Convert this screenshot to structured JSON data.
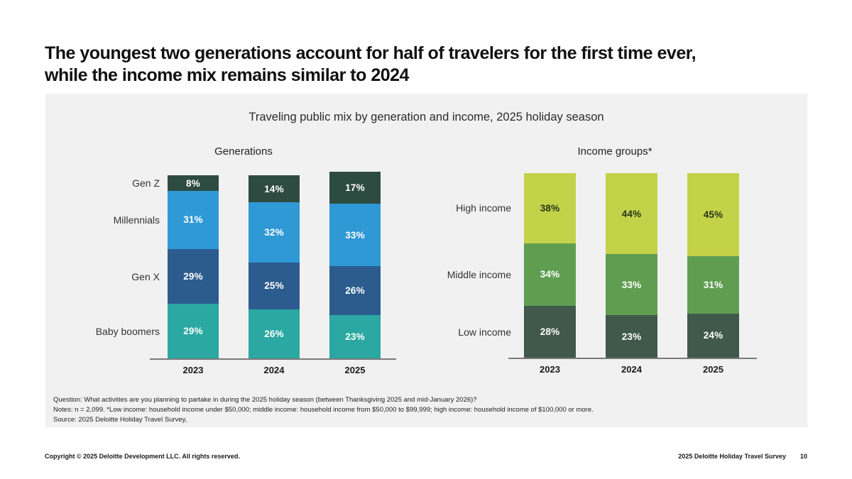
{
  "slide": {
    "title_line1": "The youngest two generations account for half of travelers for the first time ever,",
    "title_line2": "while the income mix remains similar to 2024",
    "footer_left": "Copyright © 2025 Deloitte Development LLC. All rights reserved.",
    "footer_right": "2025 Deloitte Holiday Travel Survey",
    "page_number": "10"
  },
  "chart_data": {
    "type": "bar",
    "stacked": true,
    "title": "Traveling public mix by generation and income, 2025 holiday season",
    "value_suffix": "%",
    "legend_position": "left-of-bars",
    "grid": false,
    "panel_background": "#f1f1f2",
    "axis_color": "#7a7a7a",
    "charts": [
      {
        "subtitle": "Generations",
        "categories": [
          "2023",
          "2024",
          "2025"
        ],
        "series": [
          {
            "name": "Gen Z",
            "color": "#2E4B41",
            "label_color": "#ffffff",
            "values": [
              8,
              14,
              17
            ]
          },
          {
            "name": "Millennials",
            "color": "#2F99D6",
            "label_color": "#ffffff",
            "values": [
              31,
              32,
              33
            ]
          },
          {
            "name": "Gen X",
            "color": "#2C5C8E",
            "label_color": "#ffffff",
            "values": [
              29,
              25,
              26
            ]
          },
          {
            "name": "Baby boomers",
            "color": "#2BA8A2",
            "label_color": "#ffffff",
            "values": [
              29,
              26,
              23
            ]
          }
        ]
      },
      {
        "subtitle": "Income groups*",
        "categories": [
          "2023",
          "2024",
          "2025"
        ],
        "series": [
          {
            "name": "High income",
            "color": "#C3D248",
            "label_color": "#26351A",
            "values": [
              38,
              44,
              45
            ]
          },
          {
            "name": "Middle income",
            "color": "#5F9E51",
            "label_color": "#ffffff",
            "values": [
              34,
              33,
              31
            ]
          },
          {
            "name": "Low income",
            "color": "#41594A",
            "label_color": "#ffffff",
            "values": [
              28,
              23,
              24
            ]
          }
        ]
      }
    ]
  },
  "notes": {
    "lines": [
      "Question: What activities are you planning to partake in during the 2025 holiday season (between Thanksgiving 2025 and mid-January 2026)?",
      "Notes: n = 2,099. *Low income: household income under $50,000; middle income: household income from $50,000 to $99,999; high income: household income of $100,000 or more.",
      "Source: 2025 Deloitte Holiday Travel Survey,"
    ]
  }
}
